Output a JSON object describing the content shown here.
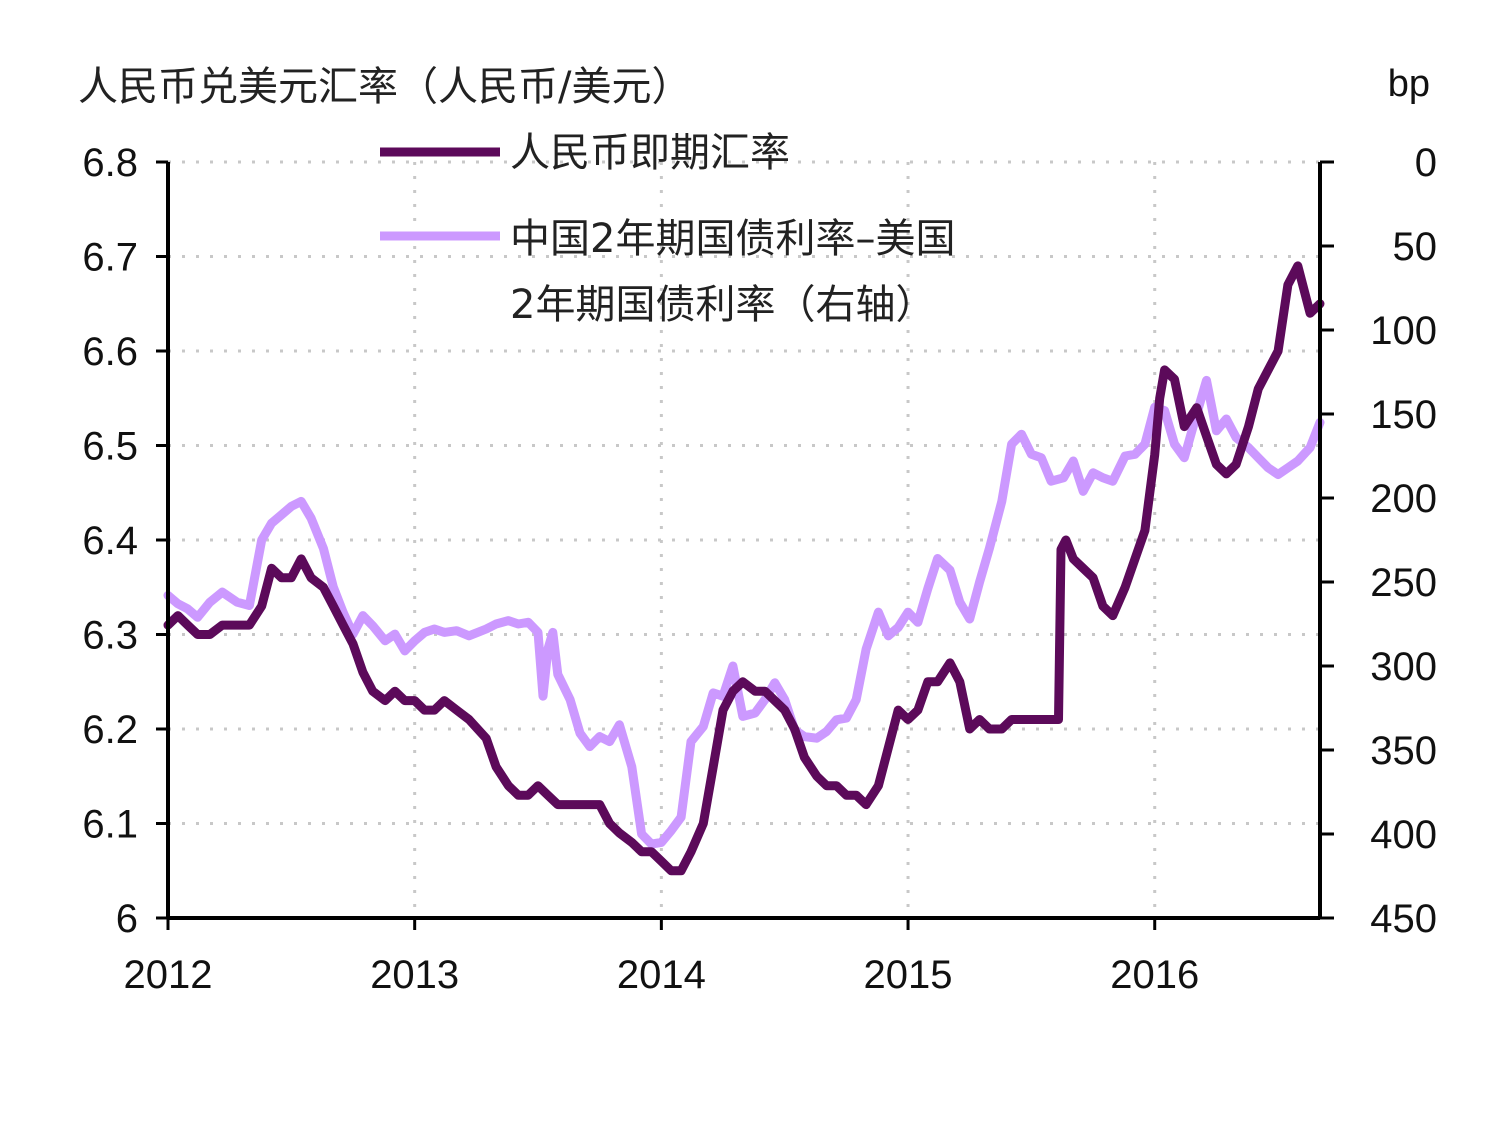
{
  "chart_data": {
    "type": "line",
    "title": "人民币兑美元汇率（人民币/美元）",
    "y2_unit": "bp",
    "x_ticks": [
      "2012",
      "2013",
      "2014",
      "2015",
      "2016"
    ],
    "xlim": [
      2012.0,
      2016.67
    ],
    "ylim": [
      6.0,
      6.8
    ],
    "y_ticks": [
      "6",
      "6.1",
      "6.2",
      "6.3",
      "6.4",
      "6.5",
      "6.6",
      "6.7",
      "6.8"
    ],
    "y2lim": [
      0,
      450
    ],
    "y2_inverted": true,
    "y2_ticks": [
      "0",
      "50",
      "100",
      "150",
      "200",
      "250",
      "300",
      "350",
      "400",
      "450"
    ],
    "grid": "dotted",
    "legend": "top-center",
    "colors": {
      "spot": "#5c0a5a",
      "spread": "#cc99ff"
    },
    "series": [
      {
        "name": "人民币即期汇率",
        "axis": "left",
        "points": [
          [
            2012.0,
            6.31
          ],
          [
            2012.04,
            6.32
          ],
          [
            2012.08,
            6.31
          ],
          [
            2012.12,
            6.3
          ],
          [
            2012.17,
            6.3
          ],
          [
            2012.22,
            6.31
          ],
          [
            2012.28,
            6.31
          ],
          [
            2012.33,
            6.31
          ],
          [
            2012.38,
            6.33
          ],
          [
            2012.42,
            6.37
          ],
          [
            2012.46,
            6.36
          ],
          [
            2012.5,
            6.36
          ],
          [
            2012.54,
            6.38
          ],
          [
            2012.58,
            6.36
          ],
          [
            2012.63,
            6.35
          ],
          [
            2012.67,
            6.33
          ],
          [
            2012.71,
            6.31
          ],
          [
            2012.75,
            6.29
          ],
          [
            2012.79,
            6.26
          ],
          [
            2012.83,
            6.24
          ],
          [
            2012.88,
            6.23
          ],
          [
            2012.92,
            6.24
          ],
          [
            2012.96,
            6.23
          ],
          [
            2013.0,
            6.23
          ],
          [
            2013.04,
            6.22
          ],
          [
            2013.08,
            6.22
          ],
          [
            2013.12,
            6.23
          ],
          [
            2013.17,
            6.22
          ],
          [
            2013.22,
            6.21
          ],
          [
            2013.29,
            6.19
          ],
          [
            2013.33,
            6.16
          ],
          [
            2013.38,
            6.14
          ],
          [
            2013.42,
            6.13
          ],
          [
            2013.46,
            6.13
          ],
          [
            2013.5,
            6.14
          ],
          [
            2013.54,
            6.13
          ],
          [
            2013.58,
            6.12
          ],
          [
            2013.63,
            6.12
          ],
          [
            2013.67,
            6.12
          ],
          [
            2013.71,
            6.12
          ],
          [
            2013.75,
            6.12
          ],
          [
            2013.79,
            6.1
          ],
          [
            2013.83,
            6.09
          ],
          [
            2013.88,
            6.08
          ],
          [
            2013.92,
            6.07
          ],
          [
            2013.96,
            6.07
          ],
          [
            2014.0,
            6.06
          ],
          [
            2014.04,
            6.05
          ],
          [
            2014.08,
            6.05
          ],
          [
            2014.12,
            6.07
          ],
          [
            2014.17,
            6.1
          ],
          [
            2014.21,
            6.16
          ],
          [
            2014.25,
            6.22
          ],
          [
            2014.29,
            6.24
          ],
          [
            2014.33,
            6.25
          ],
          [
            2014.38,
            6.24
          ],
          [
            2014.42,
            6.24
          ],
          [
            2014.46,
            6.23
          ],
          [
            2014.5,
            6.22
          ],
          [
            2014.54,
            6.2
          ],
          [
            2014.58,
            6.17
          ],
          [
            2014.63,
            6.15
          ],
          [
            2014.67,
            6.14
          ],
          [
            2014.71,
            6.14
          ],
          [
            2014.75,
            6.13
          ],
          [
            2014.79,
            6.13
          ],
          [
            2014.83,
            6.12
          ],
          [
            2014.88,
            6.14
          ],
          [
            2014.92,
            6.18
          ],
          [
            2014.96,
            6.22
          ],
          [
            2015.0,
            6.21
          ],
          [
            2015.04,
            6.22
          ],
          [
            2015.08,
            6.25
          ],
          [
            2015.12,
            6.25
          ],
          [
            2015.17,
            6.27
          ],
          [
            2015.21,
            6.25
          ],
          [
            2015.25,
            6.2
          ],
          [
            2015.29,
            6.21
          ],
          [
            2015.33,
            6.2
          ],
          [
            2015.38,
            6.2
          ],
          [
            2015.42,
            6.21
          ],
          [
            2015.46,
            6.21
          ],
          [
            2015.5,
            6.21
          ],
          [
            2015.58,
            6.21
          ],
          [
            2015.61,
            6.21
          ],
          [
            2015.62,
            6.39
          ],
          [
            2015.64,
            6.4
          ],
          [
            2015.67,
            6.38
          ],
          [
            2015.71,
            6.37
          ],
          [
            2015.75,
            6.36
          ],
          [
            2015.79,
            6.33
          ],
          [
            2015.83,
            6.32
          ],
          [
            2015.88,
            6.35
          ],
          [
            2015.92,
            6.38
          ],
          [
            2015.96,
            6.41
          ],
          [
            2016.0,
            6.49
          ],
          [
            2016.02,
            6.55
          ],
          [
            2016.04,
            6.58
          ],
          [
            2016.08,
            6.57
          ],
          [
            2016.12,
            6.52
          ],
          [
            2016.17,
            6.54
          ],
          [
            2016.21,
            6.51
          ],
          [
            2016.25,
            6.48
          ],
          [
            2016.29,
            6.47
          ],
          [
            2016.33,
            6.48
          ],
          [
            2016.38,
            6.52
          ],
          [
            2016.42,
            6.56
          ],
          [
            2016.46,
            6.58
          ],
          [
            2016.5,
            6.6
          ],
          [
            2016.54,
            6.67
          ],
          [
            2016.58,
            6.69
          ],
          [
            2016.63,
            6.64
          ],
          [
            2016.67,
            6.65
          ]
        ]
      },
      {
        "name": "中国2年期国债利率–美国2年期国债利率（右轴）",
        "axis": "right",
        "points": [
          [
            2012.0,
            258
          ],
          [
            2012.04,
            263
          ],
          [
            2012.08,
            266
          ],
          [
            2012.12,
            271
          ],
          [
            2012.17,
            262
          ],
          [
            2012.22,
            256
          ],
          [
            2012.28,
            262
          ],
          [
            2012.33,
            264
          ],
          [
            2012.38,
            225
          ],
          [
            2012.42,
            215
          ],
          [
            2012.46,
            210
          ],
          [
            2012.5,
            205
          ],
          [
            2012.54,
            202
          ],
          [
            2012.58,
            212
          ],
          [
            2012.63,
            230
          ],
          [
            2012.67,
            253
          ],
          [
            2012.71,
            268
          ],
          [
            2012.75,
            281
          ],
          [
            2012.79,
            270
          ],
          [
            2012.83,
            276
          ],
          [
            2012.88,
            285
          ],
          [
            2012.92,
            281
          ],
          [
            2012.96,
            291
          ],
          [
            2013.0,
            285
          ],
          [
            2013.04,
            280
          ],
          [
            2013.08,
            278
          ],
          [
            2013.12,
            280
          ],
          [
            2013.17,
            279
          ],
          [
            2013.22,
            282
          ],
          [
            2013.29,
            278
          ],
          [
            2013.33,
            275
          ],
          [
            2013.38,
            273
          ],
          [
            2013.42,
            275
          ],
          [
            2013.46,
            274
          ],
          [
            2013.5,
            280
          ],
          [
            2013.52,
            318
          ],
          [
            2013.54,
            290
          ],
          [
            2013.56,
            280
          ],
          [
            2013.58,
            305
          ],
          [
            2013.63,
            320
          ],
          [
            2013.67,
            340
          ],
          [
            2013.71,
            348
          ],
          [
            2013.75,
            342
          ],
          [
            2013.79,
            345
          ],
          [
            2013.83,
            335
          ],
          [
            2013.88,
            360
          ],
          [
            2013.92,
            400
          ],
          [
            2013.96,
            406
          ],
          [
            2014.0,
            405
          ],
          [
            2014.04,
            398
          ],
          [
            2014.08,
            390
          ],
          [
            2014.12,
            345
          ],
          [
            2014.17,
            336
          ],
          [
            2014.21,
            316
          ],
          [
            2014.25,
            318
          ],
          [
            2014.29,
            300
          ],
          [
            2014.33,
            330
          ],
          [
            2014.38,
            328
          ],
          [
            2014.42,
            320
          ],
          [
            2014.46,
            310
          ],
          [
            2014.5,
            320
          ],
          [
            2014.54,
            338
          ],
          [
            2014.58,
            342
          ],
          [
            2014.63,
            343
          ],
          [
            2014.67,
            339
          ],
          [
            2014.71,
            332
          ],
          [
            2014.75,
            331
          ],
          [
            2014.79,
            320
          ],
          [
            2014.83,
            290
          ],
          [
            2014.88,
            268
          ],
          [
            2014.92,
            282
          ],
          [
            2014.96,
            277
          ],
          [
            2015.0,
            268
          ],
          [
            2015.04,
            274
          ],
          [
            2015.08,
            254
          ],
          [
            2015.12,
            236
          ],
          [
            2015.17,
            243
          ],
          [
            2015.21,
            262
          ],
          [
            2015.25,
            272
          ],
          [
            2015.29,
            250
          ],
          [
            2015.33,
            230
          ],
          [
            2015.38,
            202
          ],
          [
            2015.42,
            168
          ],
          [
            2015.46,
            162
          ],
          [
            2015.5,
            174
          ],
          [
            2015.54,
            176
          ],
          [
            2015.58,
            190
          ],
          [
            2015.63,
            188
          ],
          [
            2015.67,
            178
          ],
          [
            2015.71,
            196
          ],
          [
            2015.75,
            185
          ],
          [
            2015.79,
            188
          ],
          [
            2015.83,
            190
          ],
          [
            2015.88,
            175
          ],
          [
            2015.92,
            174
          ],
          [
            2015.96,
            168
          ],
          [
            2016.0,
            146
          ],
          [
            2016.04,
            148
          ],
          [
            2016.08,
            168
          ],
          [
            2016.12,
            176
          ],
          [
            2016.17,
            150
          ],
          [
            2016.21,
            130
          ],
          [
            2016.25,
            160
          ],
          [
            2016.29,
            153
          ],
          [
            2016.33,
            164
          ],
          [
            2016.38,
            170
          ],
          [
            2016.42,
            176
          ],
          [
            2016.46,
            182
          ],
          [
            2016.5,
            186
          ],
          [
            2016.54,
            182
          ],
          [
            2016.58,
            178
          ],
          [
            2016.63,
            170
          ],
          [
            2016.67,
            155
          ]
        ]
      }
    ]
  }
}
